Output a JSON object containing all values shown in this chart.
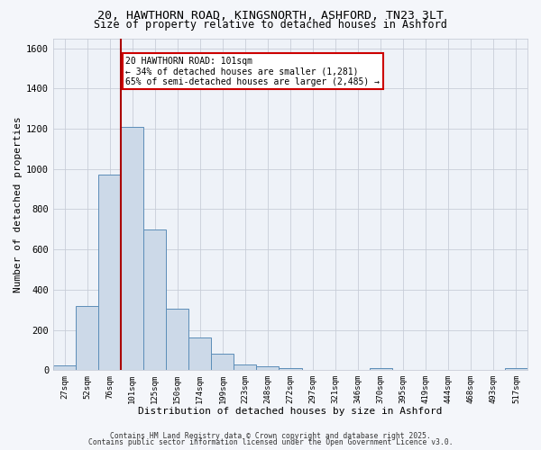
{
  "title_line1": "20, HAWTHORN ROAD, KINGSNORTH, ASHFORD, TN23 3LT",
  "title_line2": "Size of property relative to detached houses in Ashford",
  "xlabel": "Distribution of detached houses by size in Ashford",
  "ylabel": "Number of detached properties",
  "bar_labels": [
    "27sqm",
    "52sqm",
    "76sqm",
    "101sqm",
    "125sqm",
    "150sqm",
    "174sqm",
    "199sqm",
    "223sqm",
    "248sqm",
    "272sqm",
    "297sqm",
    "321sqm",
    "346sqm",
    "370sqm",
    "395sqm",
    "419sqm",
    "444sqm",
    "468sqm",
    "493sqm",
    "517sqm"
  ],
  "bar_values": [
    25,
    320,
    970,
    1210,
    700,
    305,
    160,
    80,
    28,
    18,
    12,
    0,
    0,
    0,
    8,
    0,
    0,
    0,
    0,
    0,
    12
  ],
  "bar_color": "#ccd9e8",
  "bar_edge_color": "#5b8db8",
  "red_line_index": 3,
  "annotation_line1": "20 HAWTHORN ROAD: 101sqm",
  "annotation_line2": "← 34% of detached houses are smaller (1,281)",
  "annotation_line3": "65% of semi-detached houses are larger (2,485) →",
  "annotation_box_color": "#ffffff",
  "annotation_box_edge": "#cc0000",
  "red_line_color": "#aa0000",
  "ylim": [
    0,
    1650
  ],
  "yticks": [
    0,
    200,
    400,
    600,
    800,
    1000,
    1200,
    1400,
    1600
  ],
  "plot_bg_color": "#eef2f8",
  "fig_bg_color": "#f4f6fa",
  "grid_color": "#c8cdd8",
  "footer_line1": "Contains HM Land Registry data © Crown copyright and database right 2025.",
  "footer_line2": "Contains public sector information licensed under the Open Government Licence v3.0."
}
